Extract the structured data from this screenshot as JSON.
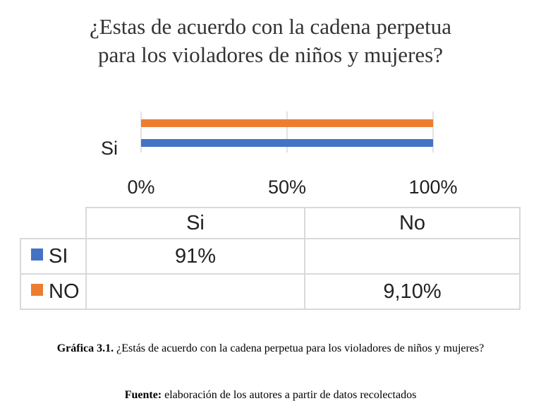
{
  "chart_data": {
    "type": "bar",
    "orientation": "horizontal",
    "title_lines": [
      "¿Estas de acuerdo con la cadena perpetua",
      "para los violadores de niños y mujeres?"
    ],
    "categories": [
      "Si"
    ],
    "series": [
      {
        "name": "Si",
        "values": [
          100
        ],
        "color": "#4472c4"
      },
      {
        "name": "No",
        "values": [
          100
        ],
        "color": "#ed7d31"
      }
    ],
    "x_ticks": [
      "0%",
      "50%",
      "100%"
    ],
    "xlim": [
      0,
      100
    ],
    "grid": true,
    "data_table": {
      "columns": [
        "Si",
        "No"
      ],
      "rows": [
        {
          "label": "SI",
          "color": "#4472c4",
          "cells": [
            "91%",
            ""
          ]
        },
        {
          "label": "NO",
          "color": "#ed7d31",
          "cells": [
            "",
            "9,10%"
          ]
        }
      ]
    }
  },
  "caption": {
    "label": "Gráfica 3.1.",
    "text": "¿Estás de acuerdo con la cadena perpetua para los violadores de niños y mujeres?"
  },
  "source": {
    "label": "Fuente:",
    "text": "elaboración de los autores a partir de datos recolectados"
  }
}
